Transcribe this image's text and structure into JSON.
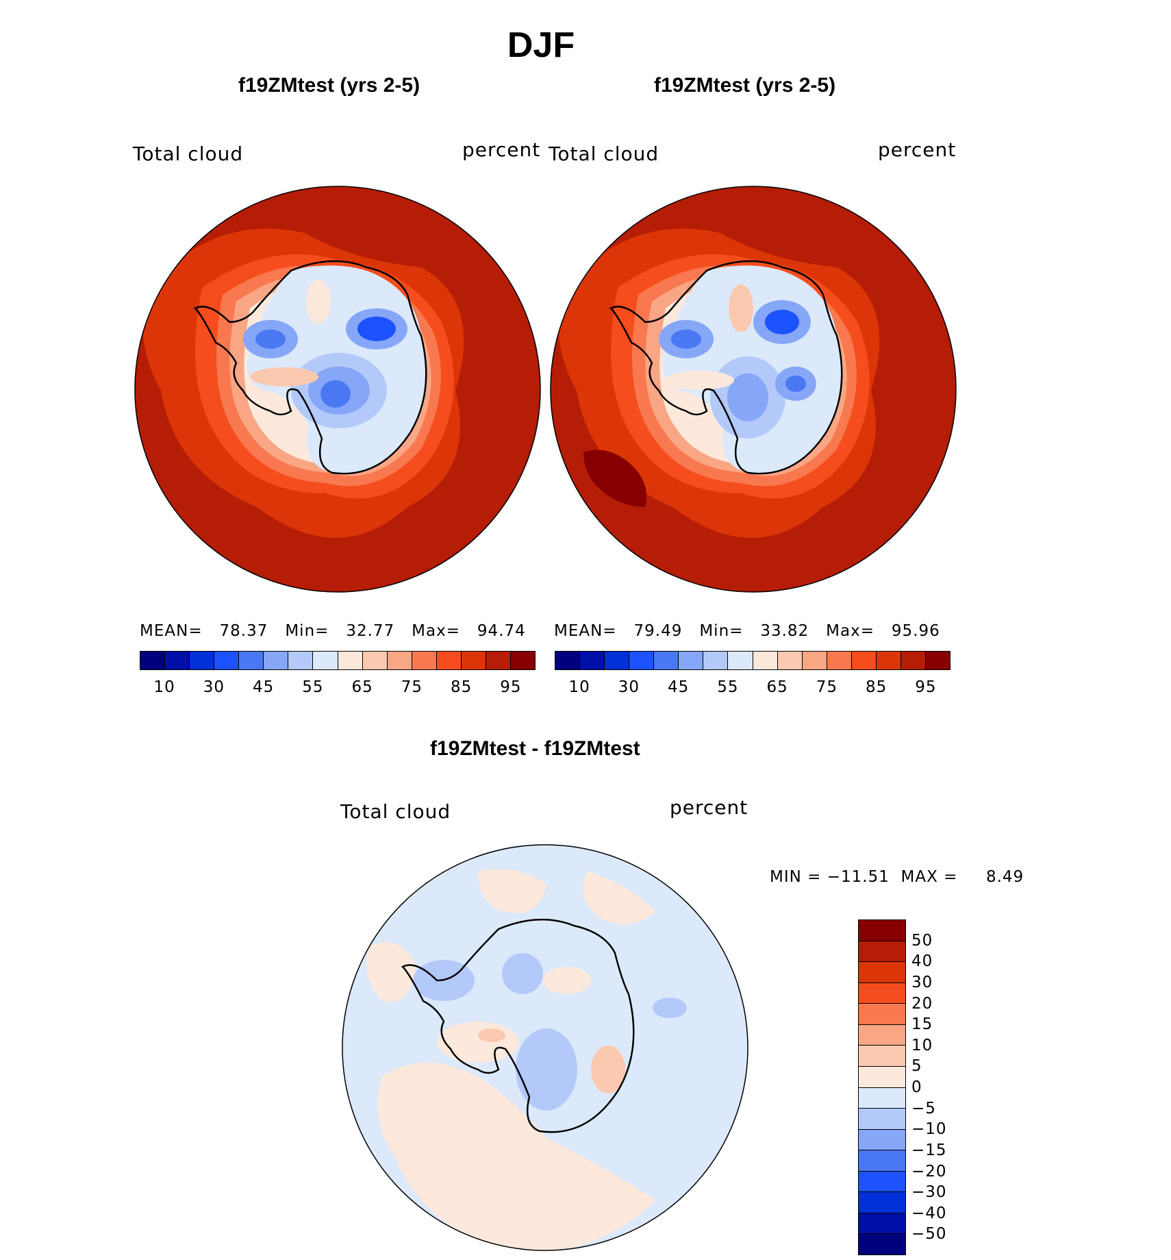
{
  "title": "DJF",
  "panels": [
    {
      "subtitle": "f19ZMtest (yrs 2-5)",
      "left_label": "Total cloud",
      "right_label": "percent",
      "stats": {
        "mean_label": "MEAN=",
        "mean": "78.37",
        "min_label": "Min=",
        "min": "32.77",
        "max_label": "Max=",
        "max": "94.74"
      }
    },
    {
      "subtitle": "f19ZMtest (yrs 2-5)",
      "left_label": "Total cloud",
      "right_label": "percent",
      "stats": {
        "mean_label": "MEAN=",
        "mean": "79.49",
        "min_label": "Min=",
        "min": "33.82",
        "max_label": "Max=",
        "max": "95.96"
      }
    }
  ],
  "abs_colorbar": {
    "colors": [
      "#00007f",
      "#0010a8",
      "#0030d8",
      "#1c52ff",
      "#4a78f2",
      "#86a6f8",
      "#b3c9f9",
      "#dce9fa",
      "#fce9dc",
      "#fbc9b0",
      "#f9a685",
      "#f8794f",
      "#f54d1d",
      "#dc3508",
      "#b51d06",
      "#870000"
    ],
    "tick_labels": [
      "10",
      "30",
      "45",
      "55",
      "65",
      "75",
      "85",
      "95"
    ]
  },
  "diff_panel": {
    "subtitle": "f19ZMtest - f19ZMtest",
    "left_label": "Total cloud",
    "right_label": "percent",
    "stats": {
      "min_label": "MIN =",
      "min": "−11.51",
      "max_label": "MAX =",
      "max": "8.49"
    },
    "colorbar": {
      "colors": [
        "#870000",
        "#b51d06",
        "#dc3508",
        "#f54d1d",
        "#f8794f",
        "#f9a685",
        "#fbc9b0",
        "#fce9dc",
        "#dce9fa",
        "#b3c9f9",
        "#86a6f8",
        "#4a78f2",
        "#1c52ff",
        "#0030d8",
        "#0010a8",
        "#00007f"
      ],
      "tick_labels": [
        "50",
        "40",
        "30",
        "20",
        "15",
        "10",
        "5",
        "0",
        "−5",
        "−10",
        "−15",
        "−20",
        "−30",
        "−40",
        "−50"
      ]
    }
  },
  "map_colors": {
    "outer": "#b51d06",
    "ring1": "#dc3508",
    "ring2": "#f54d1d",
    "ring3": "#f8794f",
    "ring4": "#f9a685",
    "ring5": "#fbc9b0",
    "ring6": "#fce9dc",
    "ice": "#dce9fa",
    "low1": "#b3c9f9",
    "low2": "#86a6f8",
    "low3": "#4a78f2",
    "low4": "#1c52ff",
    "diff_base": "#dce9fa",
    "diff_pos": "#fce9dc",
    "diff_pos2": "#fbc9b0",
    "diff_neg": "#b3c9f9"
  }
}
